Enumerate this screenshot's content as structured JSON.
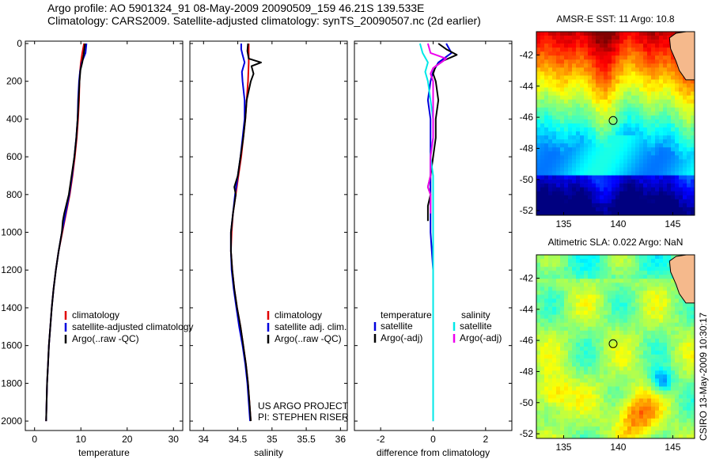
{
  "header": {
    "line1": "Argo profile: AO 5901324_91 08-May-2009 20090509_159 46.21S 139.533E",
    "line2": "Climatology: CARS2009. Satellite-adjusted climatology: synTS_20090507.nc (2d earlier)"
  },
  "colors": {
    "climatology": "#e00000",
    "satellite": "#0000dd",
    "argo": "#000000",
    "cyan": "#00e8e8",
    "magenta": "#ee00ee"
  },
  "chart_data": [
    {
      "type": "line",
      "id": "temperature",
      "xlabel": "temperature",
      "ylabel": "",
      "xlim": [
        -2,
        32
      ],
      "ylim": [
        2050,
        0
      ],
      "xticks": [
        0,
        10,
        20,
        30
      ],
      "xtick_labels": [
        "0",
        "10",
        "20",
        "30"
      ],
      "yticks": [
        0,
        200,
        400,
        600,
        800,
        1000,
        1200,
        1400,
        1600,
        1800,
        2000
      ],
      "ytick_labels": [
        "0",
        "200",
        "400",
        "600",
        "800",
        "1000",
        "1200",
        "1400",
        "1600",
        "1800",
        "2000"
      ],
      "legend": [
        "climatology",
        "satellite-adjusted climatology",
        "Argo(..raw -QC)"
      ],
      "series": [
        {
          "name": "climatology",
          "color_key": "climatology",
          "depth": [
            0,
            50,
            100,
            150,
            200,
            300,
            400,
            500,
            600,
            700,
            800,
            900,
            1000,
            1100,
            1200,
            1300,
            1400,
            1500,
            1600,
            1700,
            1800,
            1900,
            2000
          ],
          "values": [
            10.7,
            10.3,
            10.0,
            9.8,
            9.7,
            9.6,
            9.4,
            9.1,
            8.7,
            8.2,
            7.6,
            6.8,
            6.0,
            5.2,
            4.6,
            4.1,
            3.7,
            3.4,
            3.1,
            2.9,
            2.7,
            2.6,
            2.5
          ]
        },
        {
          "name": "satellite-adjusted climatology",
          "color_key": "satellite",
          "depth": [
            0,
            50,
            100,
            150,
            200,
            300,
            400,
            500,
            600,
            700,
            800,
            900,
            1000,
            1100,
            1200,
            1300,
            1400,
            1500,
            1600,
            1700,
            1800,
            1900,
            2000
          ],
          "values": [
            11.2,
            11.0,
            10.2,
            9.8,
            9.6,
            9.4,
            9.3,
            9.0,
            8.6,
            8.1,
            7.5,
            6.7,
            5.9,
            5.2,
            4.6,
            4.1,
            3.7,
            3.4,
            3.1,
            2.9,
            2.7,
            2.6,
            2.5
          ]
        },
        {
          "name": "Argo(..raw -QC)",
          "color_key": "argo",
          "depth": [
            0,
            20,
            60,
            100,
            140,
            200,
            300,
            400,
            500,
            600,
            700,
            800,
            900,
            940,
            1000,
            1100,
            1200,
            1300,
            1400,
            1500,
            1600,
            1700,
            1800,
            1900,
            2000
          ],
          "values": [
            10.9,
            10.8,
            10.6,
            10.3,
            9.9,
            9.7,
            9.5,
            9.3,
            9.0,
            8.6,
            8.0,
            7.4,
            6.4,
            6.1,
            5.9,
            5.2,
            4.6,
            4.1,
            3.7,
            3.4,
            3.1,
            2.9,
            2.7,
            2.6,
            2.5
          ]
        }
      ]
    },
    {
      "type": "line",
      "id": "salinity",
      "xlabel": "salinity",
      "ylabel": "",
      "xlim": [
        33.8,
        36.1
      ],
      "ylim": [
        2050,
        0
      ],
      "xticks": [
        34,
        34.5,
        35,
        35.5,
        36
      ],
      "xtick_labels": [
        "34",
        "34.5",
        "35",
        "35.5",
        "36"
      ],
      "legend": [
        "climatology",
        "satellite adj. clim.",
        "Argo(..raw -QC)"
      ],
      "annotation": [
        "US ARGO PROJECT",
        "PI: STEPHEN RISER"
      ],
      "series": [
        {
          "name": "climatology",
          "color_key": "climatology",
          "depth": [
            0,
            50,
            100,
            200,
            300,
            400,
            500,
            600,
            700,
            800,
            900,
            1000,
            1100,
            1200,
            1300,
            1400,
            1500,
            1600,
            1700,
            1800,
            1900,
            2000
          ],
          "values": [
            34.66,
            34.66,
            34.66,
            34.65,
            34.63,
            34.61,
            34.58,
            34.55,
            34.51,
            34.47,
            34.43,
            34.41,
            34.4,
            34.42,
            34.45,
            34.49,
            34.54,
            34.58,
            34.62,
            34.65,
            34.67,
            34.69
          ]
        },
        {
          "name": "satellite adj. clim.",
          "color_key": "satellite",
          "depth": [
            0,
            30,
            60,
            100,
            150,
            200,
            300,
            400,
            500,
            600,
            700,
            800,
            900,
            1000,
            1100,
            1200,
            1300,
            1400,
            1500,
            1600,
            1700,
            1800,
            1900,
            2000
          ],
          "values": [
            34.55,
            34.55,
            34.57,
            34.6,
            34.56,
            34.57,
            34.6,
            34.6,
            34.57,
            34.54,
            34.5,
            34.46,
            34.43,
            34.4,
            34.4,
            34.41,
            34.44,
            34.48,
            34.52,
            34.57,
            34.61,
            34.64,
            34.66,
            34.68
          ]
        },
        {
          "name": "Argo(..raw -QC)",
          "color_key": "argo",
          "depth": [
            0,
            40,
            80,
            100,
            120,
            160,
            200,
            250,
            300,
            400,
            500,
            600,
            700,
            760,
            800,
            900,
            1000,
            1100,
            1200,
            1300,
            1400,
            1500,
            1600,
            1700,
            1800,
            1900,
            2000
          ],
          "values": [
            34.65,
            34.64,
            34.66,
            34.84,
            34.7,
            34.73,
            34.69,
            34.66,
            34.63,
            34.61,
            34.58,
            34.54,
            34.5,
            34.45,
            34.47,
            34.43,
            34.4,
            34.4,
            34.42,
            34.45,
            34.49,
            34.54,
            34.58,
            34.62,
            34.65,
            34.67,
            34.69
          ]
        }
      ]
    },
    {
      "type": "line",
      "id": "difference",
      "xlabel": "difference from climatology",
      "ylabel": "",
      "xlim": [
        -3,
        3
      ],
      "ylim": [
        2050,
        0
      ],
      "xticks": [
        -2,
        0,
        2
      ],
      "xtick_labels": [
        "-2",
        "0",
        "2"
      ],
      "legend_left": {
        "title": "temperature",
        "items": [
          "satellite",
          "Argo(-adj)"
        ]
      },
      "legend_right": {
        "title": "salinity",
        "items": [
          "satellite",
          "Argo(-adj)"
        ]
      },
      "series": [
        {
          "name": "temperature satellite",
          "color_key": "satellite",
          "depth": [
            0,
            50,
            100,
            150,
            200,
            300,
            400,
            500,
            600,
            700,
            800,
            900,
            1000,
            1200,
            1400,
            1600,
            1800,
            2000
          ],
          "values": [
            0.5,
            0.7,
            0.2,
            0.0,
            -0.1,
            -0.2,
            -0.1,
            -0.1,
            -0.1,
            -0.1,
            -0.1,
            -0.1,
            -0.1,
            0.0,
            0.0,
            0.0,
            0.0,
            0.0
          ]
        },
        {
          "name": "temperature Argo(-adj)",
          "color_key": "argo",
          "depth": [
            0,
            30,
            60,
            90,
            120,
            160,
            200,
            300,
            400,
            500,
            600,
            700,
            760,
            800,
            860,
            940
          ],
          "values": [
            0.2,
            0.5,
            0.9,
            0.4,
            0.1,
            0.0,
            0.1,
            0.2,
            0.1,
            0.1,
            0.0,
            -0.1,
            -0.2,
            -0.1,
            -0.2,
            -0.2
          ]
        },
        {
          "name": "salinity satellite",
          "color_key": "cyan",
          "depth": [
            0,
            50,
            100,
            150,
            200,
            300,
            400,
            500,
            600,
            700,
            800,
            1000,
            1200,
            1400,
            1600,
            1800,
            2000
          ],
          "values": [
            -0.5,
            -0.4,
            -0.2,
            -0.3,
            -0.2,
            -0.1,
            0.0,
            0.0,
            -0.1,
            0.0,
            0.0,
            0.0,
            0.0,
            0.0,
            0.0,
            0.0,
            0.0
          ]
        },
        {
          "name": "salinity Argo(-adj)",
          "color_key": "magenta",
          "depth": [
            0,
            50,
            80,
            100,
            130,
            160,
            200,
            300,
            400,
            500,
            600,
            700,
            760,
            800,
            900
          ],
          "values": [
            -0.2,
            -0.1,
            0.5,
            0.3,
            0.0,
            -0.1,
            0.0,
            0.0,
            0.0,
            0.0,
            -0.1,
            -0.1,
            -0.2,
            -0.1,
            -0.1
          ]
        }
      ]
    },
    {
      "type": "heatmap",
      "id": "sst-map",
      "title": "AMSR-E SST: 11 Argo: 10.8",
      "xlim": [
        132.5,
        147.0
      ],
      "ylim": [
        -52.3,
        -40.5
      ],
      "xticks": [
        135,
        140,
        145
      ],
      "xtick_labels": [
        "135",
        "140",
        "145"
      ],
      "yticks": [
        -42,
        -44,
        -46,
        -48,
        -50,
        -52
      ],
      "ytick_labels": [
        "-42",
        "-44",
        "-46",
        "-48",
        "-50",
        "-52"
      ],
      "profile_location": [
        139.533,
        -46.21
      ]
    },
    {
      "type": "heatmap",
      "id": "sla-map",
      "title": "Altimetric SLA: 0.022 Argo: NaN",
      "xlim": [
        132.5,
        147.0
      ],
      "ylim": [
        -52.3,
        -40.5
      ],
      "xticks": [
        135,
        140,
        145
      ],
      "xtick_labels": [
        "135",
        "140",
        "145"
      ],
      "yticks": [
        -42,
        -44,
        -46,
        -48,
        -50,
        -52
      ],
      "ytick_labels": [
        "-42",
        "-44",
        "-46",
        "-48",
        "-50",
        "-52"
      ],
      "profile_location": [
        139.533,
        -46.21
      ]
    }
  ],
  "side_label": "CSIRO 13-May-2009 10:30:17"
}
